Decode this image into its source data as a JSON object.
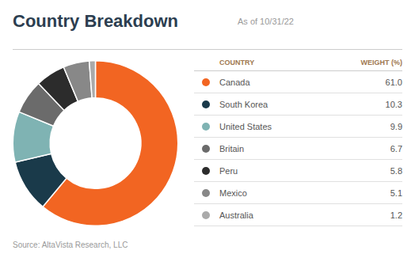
{
  "chart_data": {
    "type": "doughnut",
    "title": "Country Breakdown",
    "subtitle": "As of 10/31/22",
    "source": "Source: AltaVista Research, LLC",
    "column_labels": [
      "COUNTRY",
      "WEIGHT (%)"
    ],
    "categories": [
      "Canada",
      "South Korea",
      "United States",
      "Britain",
      "Peru",
      "Mexico",
      "Australia"
    ],
    "values": [
      61.0,
      10.3,
      9.9,
      6.7,
      5.8,
      5.1,
      1.2
    ],
    "value_labels": [
      "61.0",
      "10.3",
      "9.9",
      "6.7",
      "5.8",
      "5.1",
      "1.2"
    ],
    "colors": [
      "#f26522",
      "#1a3a4a",
      "#7fb3b3",
      "#6b6b6b",
      "#2c2c2c",
      "#888888",
      "#aaaaaa"
    ],
    "legend": "right"
  }
}
